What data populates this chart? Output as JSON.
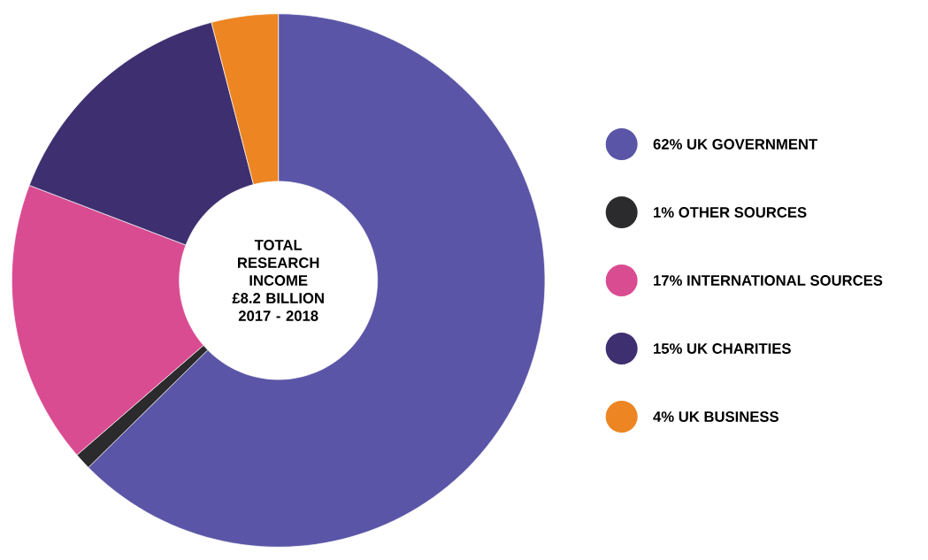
{
  "chart_data": {
    "type": "donut",
    "title": "TOTAL RESEARCH INCOME",
    "annotations": [
      "£8.2 BILLION",
      "2017 - 2018"
    ],
    "categories": [
      "62% UK GOVERNMENT",
      "1% OTHER SOURCES",
      "17% INTERNATIONAL SOURCES",
      "15% UK CHARITIES",
      "4% UK BUSINESS"
    ],
    "values": [
      62,
      1,
      17,
      15,
      4
    ],
    "colors": [
      "#5a55a6",
      "#2b2b2d",
      "#d94c91",
      "#3e2f70",
      "#ec8522"
    ],
    "legend": "right"
  }
}
